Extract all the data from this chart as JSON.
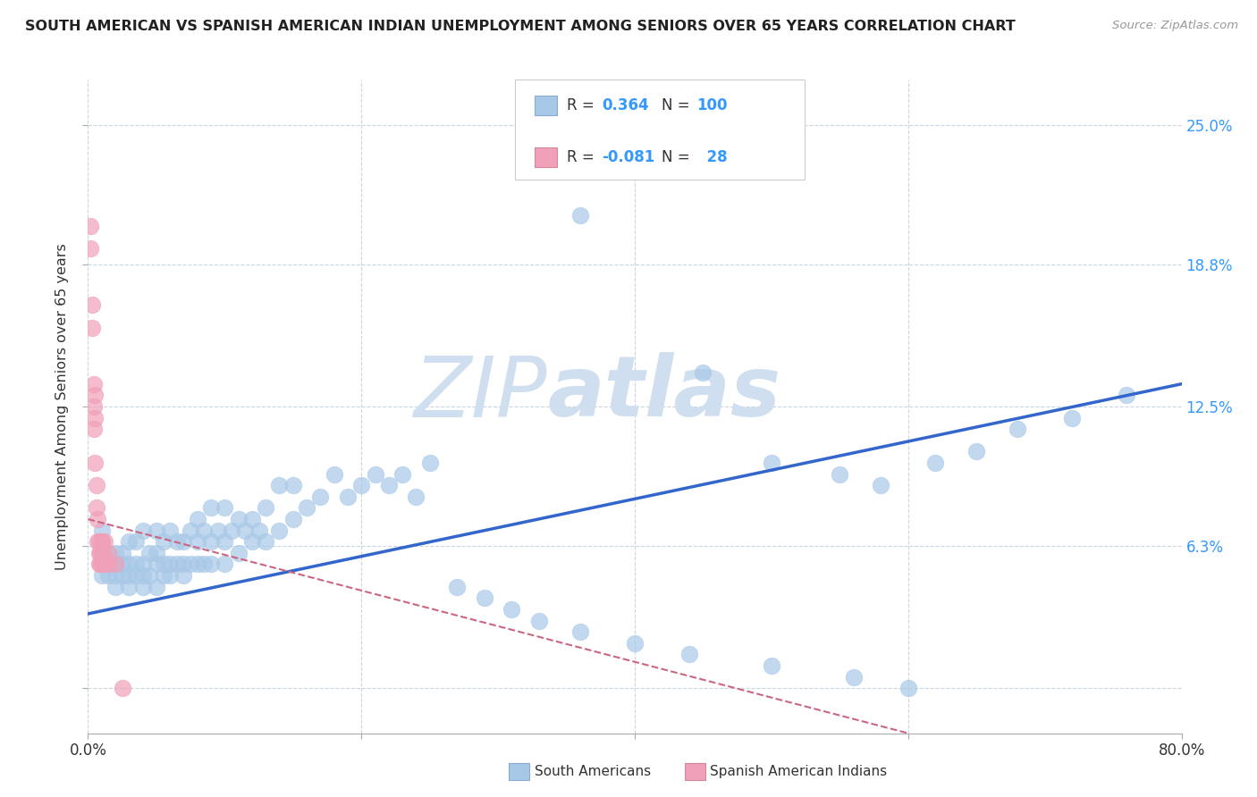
{
  "title": "SOUTH AMERICAN VS SPANISH AMERICAN INDIAN UNEMPLOYMENT AMONG SENIORS OVER 65 YEARS CORRELATION CHART",
  "source": "Source: ZipAtlas.com",
  "ylabel": "Unemployment Among Seniors over 65 years",
  "xlim": [
    0.0,
    0.8
  ],
  "ylim": [
    -0.02,
    0.27
  ],
  "xticks": [
    0.0,
    0.2,
    0.4,
    0.6,
    0.8
  ],
  "xticklabels": [
    "0.0%",
    "",
    "",
    "",
    "80.0%"
  ],
  "ytick_values": [
    0.0,
    0.063,
    0.125,
    0.188,
    0.25
  ],
  "ytick_labels": [
    "",
    "6.3%",
    "12.5%",
    "18.8%",
    "25.0%"
  ],
  "blue_color": "#A8C8E8",
  "pink_color": "#F0A0B8",
  "blue_line_color": "#3366CC",
  "pink_line_color": "#CC6680",
  "watermark_color": "#D0DFF0",
  "blue_scatter_x": [
    0.01,
    0.01,
    0.01,
    0.01,
    0.01,
    0.015,
    0.015,
    0.015,
    0.02,
    0.02,
    0.02,
    0.02,
    0.025,
    0.025,
    0.025,
    0.03,
    0.03,
    0.03,
    0.03,
    0.035,
    0.035,
    0.035,
    0.04,
    0.04,
    0.04,
    0.04,
    0.045,
    0.045,
    0.05,
    0.05,
    0.05,
    0.05,
    0.055,
    0.055,
    0.055,
    0.06,
    0.06,
    0.06,
    0.065,
    0.065,
    0.07,
    0.07,
    0.07,
    0.075,
    0.075,
    0.08,
    0.08,
    0.08,
    0.085,
    0.085,
    0.09,
    0.09,
    0.09,
    0.095,
    0.1,
    0.1,
    0.1,
    0.105,
    0.11,
    0.11,
    0.115,
    0.12,
    0.12,
    0.125,
    0.13,
    0.13,
    0.14,
    0.14,
    0.15,
    0.15,
    0.16,
    0.17,
    0.18,
    0.19,
    0.2,
    0.21,
    0.22,
    0.23,
    0.24,
    0.25,
    0.27,
    0.29,
    0.31,
    0.33,
    0.36,
    0.4,
    0.44,
    0.5,
    0.56,
    0.6,
    0.36,
    0.45,
    0.5,
    0.55,
    0.58,
    0.62,
    0.65,
    0.68,
    0.72,
    0.76
  ],
  "blue_scatter_y": [
    0.05,
    0.055,
    0.06,
    0.065,
    0.07,
    0.05,
    0.055,
    0.06,
    0.045,
    0.05,
    0.055,
    0.06,
    0.05,
    0.055,
    0.06,
    0.045,
    0.05,
    0.055,
    0.065,
    0.05,
    0.055,
    0.065,
    0.045,
    0.05,
    0.055,
    0.07,
    0.05,
    0.06,
    0.045,
    0.055,
    0.06,
    0.07,
    0.05,
    0.055,
    0.065,
    0.05,
    0.055,
    0.07,
    0.055,
    0.065,
    0.05,
    0.055,
    0.065,
    0.055,
    0.07,
    0.055,
    0.065,
    0.075,
    0.055,
    0.07,
    0.055,
    0.065,
    0.08,
    0.07,
    0.055,
    0.065,
    0.08,
    0.07,
    0.06,
    0.075,
    0.07,
    0.065,
    0.075,
    0.07,
    0.065,
    0.08,
    0.07,
    0.09,
    0.075,
    0.09,
    0.08,
    0.085,
    0.095,
    0.085,
    0.09,
    0.095,
    0.09,
    0.095,
    0.085,
    0.1,
    0.045,
    0.04,
    0.035,
    0.03,
    0.025,
    0.02,
    0.015,
    0.01,
    0.005,
    0.0,
    0.21,
    0.14,
    0.1,
    0.095,
    0.09,
    0.1,
    0.105,
    0.115,
    0.12,
    0.13
  ],
  "pink_scatter_x": [
    0.002,
    0.002,
    0.003,
    0.003,
    0.004,
    0.004,
    0.004,
    0.005,
    0.005,
    0.005,
    0.006,
    0.006,
    0.007,
    0.007,
    0.008,
    0.008,
    0.008,
    0.009,
    0.009,
    0.01,
    0.01,
    0.01,
    0.012,
    0.012,
    0.015,
    0.015,
    0.02,
    0.025
  ],
  "pink_scatter_y": [
    0.205,
    0.195,
    0.17,
    0.16,
    0.135,
    0.125,
    0.115,
    0.13,
    0.12,
    0.1,
    0.09,
    0.08,
    0.075,
    0.065,
    0.065,
    0.06,
    0.055,
    0.06,
    0.055,
    0.065,
    0.06,
    0.055,
    0.065,
    0.055,
    0.06,
    0.055,
    0.055,
    0.0
  ],
  "blue_trend_x": [
    0.0,
    0.8
  ],
  "blue_trend_y": [
    0.033,
    0.135
  ],
  "pink_trend_x": [
    0.0,
    0.6
  ],
  "pink_trend_y": [
    0.075,
    -0.02
  ]
}
